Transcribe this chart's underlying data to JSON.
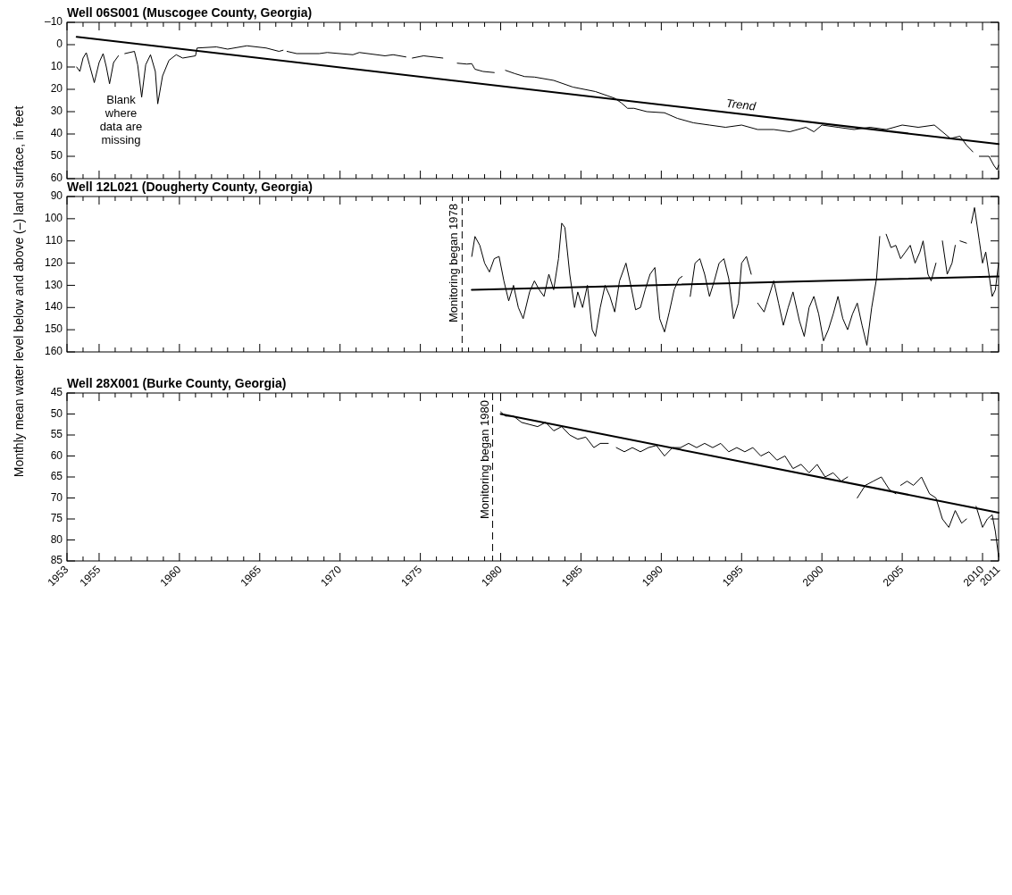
{
  "chart_data": [
    {
      "type": "line",
      "title": "Well 06S001 (Muscogee County, Georgia)",
      "xlim": [
        1953,
        2011
      ],
      "ylim": [
        60,
        -10
      ],
      "xticks": [
        1953,
        {
          "value": 1954,
          "label": null
        },
        1955,
        {
          "value": 1956,
          "label": null
        },
        {
          "value": 1957,
          "label": null
        },
        {
          "value": 1958,
          "label": null
        },
        {
          "value": 1959,
          "label": null
        },
        1960,
        {
          "value": 1961,
          "label": null
        },
        {
          "value": 1962,
          "label": null
        },
        {
          "value": 1963,
          "label": null
        },
        {
          "value": 1964,
          "label": null
        },
        1965,
        {
          "value": 1966,
          "label": null
        },
        {
          "value": 1967,
          "label": null
        },
        {
          "value": 1968,
          "label": null
        },
        {
          "value": 1969,
          "label": null
        },
        1970,
        {
          "value": 1971,
          "label": null
        },
        {
          "value": 1972,
          "label": null
        },
        {
          "value": 1973,
          "label": null
        },
        {
          "value": 1974,
          "label": null
        },
        1975,
        {
          "value": 1976,
          "label": null
        },
        {
          "value": 1977,
          "label": null
        },
        {
          "value": 1978,
          "label": null
        },
        {
          "value": 1979,
          "label": null
        },
        1980,
        {
          "value": 1981,
          "label": null
        },
        {
          "value": 1982,
          "label": null
        },
        {
          "value": 1983,
          "label": null
        },
        {
          "value": 1984,
          "label": null
        },
        1985,
        {
          "value": 1986,
          "label": null
        },
        {
          "value": 1987,
          "label": null
        },
        {
          "value": 1988,
          "label": null
        },
        {
          "value": 1989,
          "label": null
        },
        1990,
        {
          "value": 1991,
          "label": null
        },
        {
          "value": 1992,
          "label": null
        },
        {
          "value": 1993,
          "label": null
        },
        {
          "value": 1994,
          "label": null
        },
        1995,
        {
          "value": 1996,
          "label": null
        },
        {
          "value": 1997,
          "label": null
        },
        {
          "value": 1998,
          "label": null
        },
        {
          "value": 1999,
          "label": null
        },
        2000,
        {
          "value": 2001,
          "label": null
        },
        {
          "value": 2002,
          "label": null
        },
        {
          "value": 2003,
          "label": null
        },
        {
          "value": 2004,
          "label": null
        },
        2005,
        {
          "value": 2006,
          "label": null
        },
        {
          "value": 2007,
          "label": null
        },
        {
          "value": 2008,
          "label": null
        },
        {
          "value": 2009,
          "label": null
        },
        2010,
        2011
      ],
      "yticks": [
        {
          "value": -10,
          "label": "–10"
        },
        0,
        10,
        20,
        30,
        40,
        50,
        60
      ],
      "tick_labels": "y",
      "series": [
        {
          "color": "#000000",
          "x": [
            1953.6,
            1953.8,
            1954.0,
            1954.2,
            1954.4,
            1954.7,
            1955.0,
            1955.25,
            1955.45,
            1955.65,
            1955.9,
            1956.2,
            1956.4,
            1956.6,
            1957.2,
            1957.4,
            1957.65,
            1957.9,
            1958.2,
            1958.5,
            1958.65,
            1958.95,
            1959.35,
            1959.8,
            1960.2,
            1961,
            1961.1,
            1962.3,
            1963,
            1964.2,
            1965.4,
            1966.2,
            1966.45,
            1966.6,
            1966.7,
            1967.3,
            1968.7,
            1969.2,
            1970.8,
            1971.2,
            1972.8,
            1973.3,
            1974.1,
            1974.3,
            1974.5,
            1975.2,
            1976.4,
            1977,
            1977.3,
            1977.9,
            1978.2,
            1978.4,
            1978.9,
            1979.6,
            1980,
            1980.3,
            1980.9,
            1981.5,
            1982.1,
            1983.3,
            1984.5,
            1985.9,
            1987.1,
            1987.5,
            1987.9,
            1988.3,
            1989.1,
            1990.2,
            1991,
            1992,
            1993,
            1994,
            1995,
            1996,
            1997,
            1998,
            1999,
            1999.5,
            2000,
            2001,
            2002,
            2003,
            2004,
            2005,
            2006,
            2007,
            2007.5,
            2008,
            2008.6,
            2009,
            2009.4,
            2009.6,
            2009.8,
            2010.4,
            2010.7,
            2010.9,
            2011
          ],
          "values": [
            10,
            12,
            6,
            3.6,
            9,
            17,
            8,
            4,
            10,
            17.5,
            8,
            5,
            null,
            4,
            3,
            9,
            23.5,
            9,
            4.5,
            12,
            26.5,
            14,
            7,
            4.5,
            6,
            5,
            1.5,
            1,
            2,
            0.5,
            1.5,
            3,
            2.5,
            null,
            3,
            4,
            4,
            3.5,
            4.5,
            3.5,
            5,
            4.5,
            5.5,
            null,
            6,
            5,
            6,
            null,
            8.3,
            8.7,
            8.5,
            11,
            12,
            12.5,
            null,
            11.5,
            13,
            14.3,
            14.5,
            16,
            19,
            21,
            24,
            26,
            28.5,
            28.5,
            30,
            30.5,
            33,
            35,
            36,
            37,
            36,
            38,
            38,
            39,
            37,
            39,
            36,
            37,
            38,
            37,
            38,
            36,
            37,
            36,
            39,
            42,
            41,
            45,
            48,
            null,
            50,
            50,
            54,
            56,
            54
          ]
        },
        {
          "name": "Trend",
          "color": "#000000",
          "x": [
            1953.6,
            2011
          ],
          "values": [
            -3.5,
            44.5
          ]
        }
      ],
      "annotations": [
        "Blank where data are missing"
      ]
    },
    {
      "type": "line",
      "title": "Well 12L021 (Dougherty County, Georgia)",
      "ylabel": "Monthly mean water level below and above (–) land surface, in feet",
      "xlim": [
        1953,
        2011
      ],
      "ylim": [
        160,
        90
      ],
      "xticks": [
        1953,
        {
          "value": 1954,
          "label": null
        },
        1955,
        {
          "value": 1956,
          "label": null
        },
        {
          "value": 1957,
          "label": null
        },
        {
          "value": 1958,
          "label": null
        },
        {
          "value": 1959,
          "label": null
        },
        1960,
        {
          "value": 1961,
          "label": null
        },
        {
          "value": 1962,
          "label": null
        },
        {
          "value": 1963,
          "label": null
        },
        {
          "value": 1964,
          "label": null
        },
        1965,
        {
          "value": 1966,
          "label": null
        },
        {
          "value": 1967,
          "label": null
        },
        {
          "value": 1968,
          "label": null
        },
        {
          "value": 1969,
          "label": null
        },
        1970,
        {
          "value": 1971,
          "label": null
        },
        {
          "value": 1972,
          "label": null
        },
        {
          "value": 1973,
          "label": null
        },
        {
          "value": 1974,
          "label": null
        },
        1975,
        {
          "value": 1976,
          "label": null
        },
        {
          "value": 1977,
          "label": null
        },
        {
          "value": 1978,
          "label": null
        },
        {
          "value": 1979,
          "label": null
        },
        1980,
        {
          "value": 1981,
          "label": null
        },
        {
          "value": 1982,
          "label": null
        },
        {
          "value": 1983,
          "label": null
        },
        {
          "value": 1984,
          "label": null
        },
        1985,
        {
          "value": 1986,
          "label": null
        },
        {
          "value": 1987,
          "label": null
        },
        {
          "value": 1988,
          "label": null
        },
        {
          "value": 1989,
          "label": null
        },
        1990,
        {
          "value": 1991,
          "label": null
        },
        {
          "value": 1992,
          "label": null
        },
        {
          "value": 1993,
          "label": null
        },
        {
          "value": 1994,
          "label": null
        },
        1995,
        {
          "value": 1996,
          "label": null
        },
        {
          "value": 1997,
          "label": null
        },
        {
          "value": 1998,
          "label": null
        },
        {
          "value": 1999,
          "label": null
        },
        2000,
        {
          "value": 2001,
          "label": null
        },
        {
          "value": 2002,
          "label": null
        },
        {
          "value": 2003,
          "label": null
        },
        {
          "value": 2004,
          "label": null
        },
        2005,
        {
          "value": 2006,
          "label": null
        },
        {
          "value": 2007,
          "label": null
        },
        {
          "value": 2008,
          "label": null
        },
        {
          "value": 2009,
          "label": null
        },
        2010,
        2011
      ],
      "yticks": [
        90,
        100,
        110,
        120,
        130,
        140,
        150,
        160
      ],
      "tick_labels": "y",
      "series": [
        {
          "color": "#000000",
          "x": [
            1978.2,
            1978.4,
            1978.7,
            1979,
            1979.3,
            1979.6,
            1979.9,
            1980.2,
            1980.5,
            1980.8,
            1981.1,
            1981.4,
            1981.8,
            1982.1,
            1982.4,
            1982.7,
            1983,
            1983.3,
            1983.6,
            1983.8,
            1984,
            1984.3,
            1984.6,
            1984.8,
            1985.1,
            1985.4,
            1985.7,
            1985.9,
            1986.2,
            1986.5,
            1986.8,
            1987.1,
            1987.4,
            1987.8,
            1988.1,
            1988.4,
            1988.7,
            1989,
            1989.3,
            1989.6,
            1989.9,
            1990.2,
            1990.5,
            1990.8,
            1991.1,
            1991.3,
            1991.5,
            1991.8,
            1992.1,
            1992.4,
            1992.7,
            1993,
            1993.3,
            1993.6,
            1993.9,
            1994.2,
            1994.5,
            1994.8,
            1995,
            1995.3,
            1995.6,
            1995.8,
            1996,
            1996.4,
            1996.7,
            1997,
            1997.3,
            1997.6,
            1997.9,
            1998.2,
            1998.6,
            1998.9,
            1999.2,
            1999.5,
            1999.8,
            2000.1,
            2000.4,
            2000.7,
            2001,
            2001.3,
            2001.6,
            2001.9,
            2002.2,
            2002.5,
            2002.8,
            2003.1,
            2003.4,
            2003.6,
            2003.8,
            2004,
            2004.3,
            2004.6,
            2004.9,
            2005.2,
            2005.5,
            2005.8,
            2006.1,
            2006.3,
            2006.6,
            2006.8,
            2007.1,
            2007.3,
            2007.5,
            2007.8,
            2008.1,
            2008.3,
            2008.45,
            2008.6,
            2009,
            2009.1,
            2009.3,
            2009.5,
            2009.8,
            2010,
            2010.2,
            2010.4,
            2010.6,
            2010.8,
            2011
          ],
          "values": [
            117,
            108,
            112,
            120,
            124,
            118,
            117,
            128,
            137,
            130,
            140,
            145,
            133,
            128,
            132,
            135,
            125,
            132,
            118,
            102,
            104,
            125,
            140,
            133,
            140,
            130,
            150,
            153,
            140,
            130,
            135,
            142,
            128,
            120,
            130,
            141,
            140,
            132,
            125,
            122,
            145,
            151,
            142,
            132,
            127,
            126,
            null,
            135,
            120,
            118,
            125,
            135,
            128,
            120,
            118,
            127,
            145,
            138,
            120,
            117,
            125,
            null,
            138,
            142,
            135,
            128,
            138,
            148,
            140,
            133,
            146,
            153,
            140,
            135,
            143,
            155,
            150,
            143,
            135,
            145,
            150,
            143,
            138,
            148,
            157,
            140,
            127,
            108,
            null,
            107,
            113,
            112,
            118,
            115,
            112,
            120,
            115,
            110,
            125,
            128,
            120,
            null,
            110,
            125,
            120,
            112,
            null,
            110,
            111,
            null,
            102,
            95,
            110,
            120,
            115,
            125,
            135,
            132,
            120
          ]
        },
        {
          "color": "#000000",
          "x": [
            1978.2,
            2011
          ],
          "values": [
            132,
            126
          ]
        }
      ],
      "ref_lines": [
        {
          "axis": "x",
          "value": 1977.6,
          "label": "Monitoring began 1978",
          "line_style": "dashed"
        }
      ]
    },
    {
      "type": "line",
      "title": "Well 28X001 (Burke County, Georgia)",
      "xlim": [
        1953,
        2011
      ],
      "ylim": [
        85,
        45
      ],
      "xticks": [
        1953,
        {
          "value": 1954,
          "label": null
        },
        1955,
        {
          "value": 1956,
          "label": null
        },
        {
          "value": 1957,
          "label": null
        },
        {
          "value": 1958,
          "label": null
        },
        {
          "value": 1959,
          "label": null
        },
        1960,
        {
          "value": 1961,
          "label": null
        },
        {
          "value": 1962,
          "label": null
        },
        {
          "value": 1963,
          "label": null
        },
        {
          "value": 1964,
          "label": null
        },
        1965,
        {
          "value": 1966,
          "label": null
        },
        {
          "value": 1967,
          "label": null
        },
        {
          "value": 1968,
          "label": null
        },
        {
          "value": 1969,
          "label": null
        },
        1970,
        {
          "value": 1971,
          "label": null
        },
        {
          "value": 1972,
          "label": null
        },
        {
          "value": 1973,
          "label": null
        },
        {
          "value": 1974,
          "label": null
        },
        1975,
        {
          "value": 1976,
          "label": null
        },
        {
          "value": 1977,
          "label": null
        },
        {
          "value": 1978,
          "label": null
        },
        {
          "value": 1979,
          "label": null
        },
        1980,
        {
          "value": 1981,
          "label": null
        },
        {
          "value": 1982,
          "label": null
        },
        {
          "value": 1983,
          "label": null
        },
        {
          "value": 1984,
          "label": null
        },
        1985,
        {
          "value": 1986,
          "label": null
        },
        {
          "value": 1987,
          "label": null
        },
        {
          "value": 1988,
          "label": null
        },
        {
          "value": 1989,
          "label": null
        },
        1990,
        {
          "value": 1991,
          "label": null
        },
        {
          "value": 1992,
          "label": null
        },
        {
          "value": 1993,
          "label": null
        },
        {
          "value": 1994,
          "label": null
        },
        1995,
        {
          "value": 1996,
          "label": null
        },
        {
          "value": 1997,
          "label": null
        },
        {
          "value": 1998,
          "label": null
        },
        {
          "value": 1999,
          "label": null
        },
        2000,
        {
          "value": 2001,
          "label": null
        },
        {
          "value": 2002,
          "label": null
        },
        {
          "value": 2003,
          "label": null
        },
        {
          "value": 2004,
          "label": null
        },
        2005,
        {
          "value": 2006,
          "label": null
        },
        {
          "value": 2007,
          "label": null
        },
        {
          "value": 2008,
          "label": null
        },
        {
          "value": 2009,
          "label": null
        },
        2010,
        2011
      ],
      "yticks": [
        45,
        50,
        55,
        60,
        65,
        70,
        75,
        80,
        85
      ],
      "series": [
        {
          "color": "#000000",
          "x": [
            1980,
            1980.3,
            1980.8,
            1981.3,
            1981.8,
            1982.3,
            1982.8,
            1983.3,
            1983.8,
            1984.3,
            1984.8,
            1985.3,
            1985.8,
            1986.2,
            1986.7,
            1986.9,
            1987.2,
            1987.7,
            1988.2,
            1988.7,
            1989.2,
            1989.7,
            1990.2,
            1990.7,
            1991.2,
            1991.7,
            1992.2,
            1992.7,
            1993.2,
            1993.7,
            1994.2,
            1994.7,
            1995.2,
            1995.7,
            1996.2,
            1996.7,
            1997.2,
            1997.7,
            1998.2,
            1998.7,
            1999.2,
            1999.7,
            2000.2,
            2000.7,
            2001.2,
            2001.6,
            2001.9,
            2002.2,
            2002.7,
            2003.2,
            2003.7,
            2004.2,
            2004.6,
            2004.75,
            2004.9,
            2005.3,
            2005.7,
            2006.2,
            2006.7,
            2007.1,
            2007.5,
            2007.9,
            2008.3,
            2008.7,
            2009,
            2009.3,
            2009.6,
            2010,
            2010.3,
            2010.6,
            2010.8,
            2011
          ],
          "values": [
            49.5,
            50.5,
            50.5,
            52,
            52.5,
            53,
            52,
            54,
            53,
            55,
            56,
            55.5,
            58,
            57,
            57,
            null,
            58,
            59,
            58,
            59,
            58,
            57.5,
            60,
            58,
            58,
            57,
            58,
            57,
            58,
            57,
            59,
            58,
            59,
            58,
            60,
            59,
            61,
            60,
            63,
            62,
            64,
            62,
            65,
            64,
            66,
            65,
            null,
            70,
            67,
            66,
            65,
            68,
            69,
            null,
            67,
            66,
            67,
            65,
            69,
            70,
            75,
            77,
            73,
            76,
            75,
            null,
            72,
            77,
            75,
            74,
            78,
            84
          ]
        },
        {
          "color": "#000000",
          "x": [
            1980,
            2011
          ],
          "values": [
            50,
            73.5
          ]
        }
      ],
      "ref_lines": [
        {
          "axis": "x",
          "value": 1979.5,
          "label": "Monitoring began 1980",
          "line_style": "dashed"
        }
      ]
    }
  ]
}
